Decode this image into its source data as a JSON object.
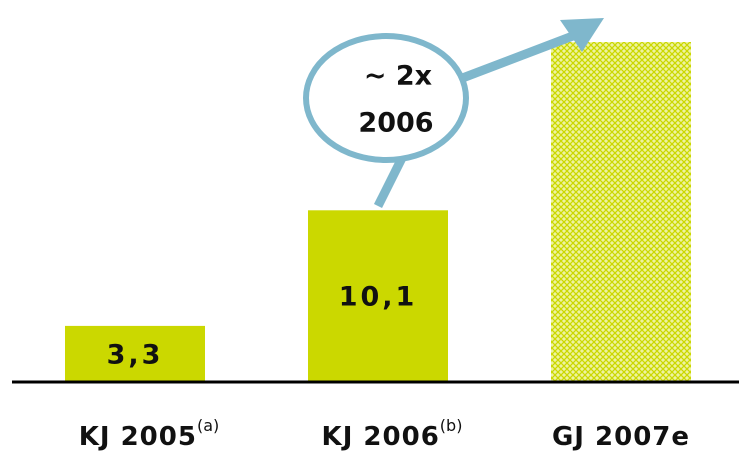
{
  "chart_data": {
    "type": "bar",
    "categories": [
      "KJ 2005",
      "KJ 2006",
      "GJ 2007e"
    ],
    "category_notes": [
      "(a)",
      "(b)",
      null
    ],
    "values": [
      3.3,
      10.1,
      20
    ],
    "value_labels": [
      "3,3",
      "10,1",
      null
    ],
    "colors": [
      "#cbd800",
      "#cbd800",
      "#cbd800"
    ],
    "hatched": [
      false,
      false,
      true
    ],
    "ylim": [
      0,
      22
    ],
    "annotation": [
      "~ 2x",
      "2006"
    ]
  }
}
